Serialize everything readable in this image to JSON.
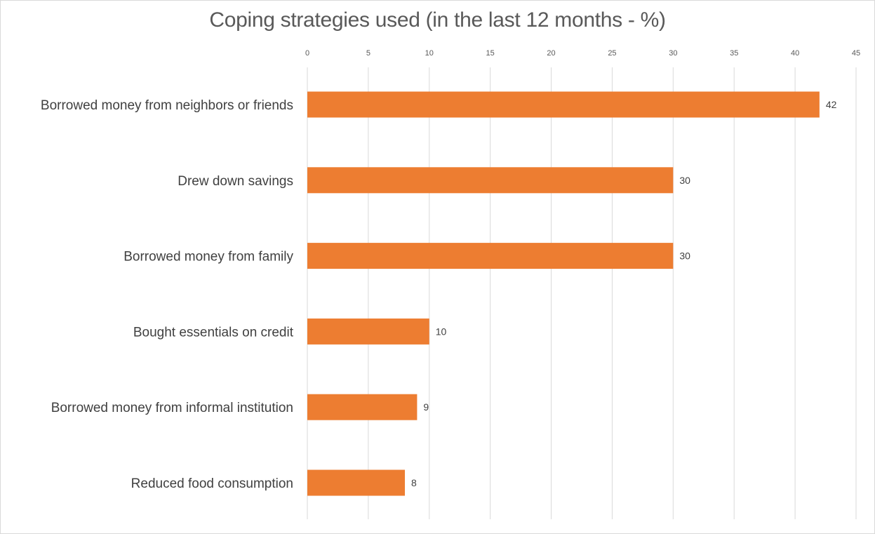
{
  "chart_data": {
    "type": "bar",
    "orientation": "horizontal",
    "title": "Coping strategies used (in the last 12 months - %)",
    "xlabel": "",
    "ylabel": "",
    "xlim": [
      0,
      45
    ],
    "x_ticks": [
      0,
      5,
      10,
      15,
      20,
      25,
      30,
      35,
      40,
      45
    ],
    "x_axis_position": "top",
    "grid": true,
    "legend": "none",
    "categories": [
      "Borrowed money from neighbors or friends",
      "Drew down savings",
      "Borrowed money from family",
      "Bought  essentials on credit",
      "Borrowed money from informal institution",
      "Reduced food consumption"
    ],
    "values": [
      42,
      30,
      30,
      10,
      9,
      8
    ],
    "data_labels": [
      "42",
      "30",
      "30",
      "10",
      "9",
      "8"
    ],
    "bar_color": "#ed7d31"
  }
}
